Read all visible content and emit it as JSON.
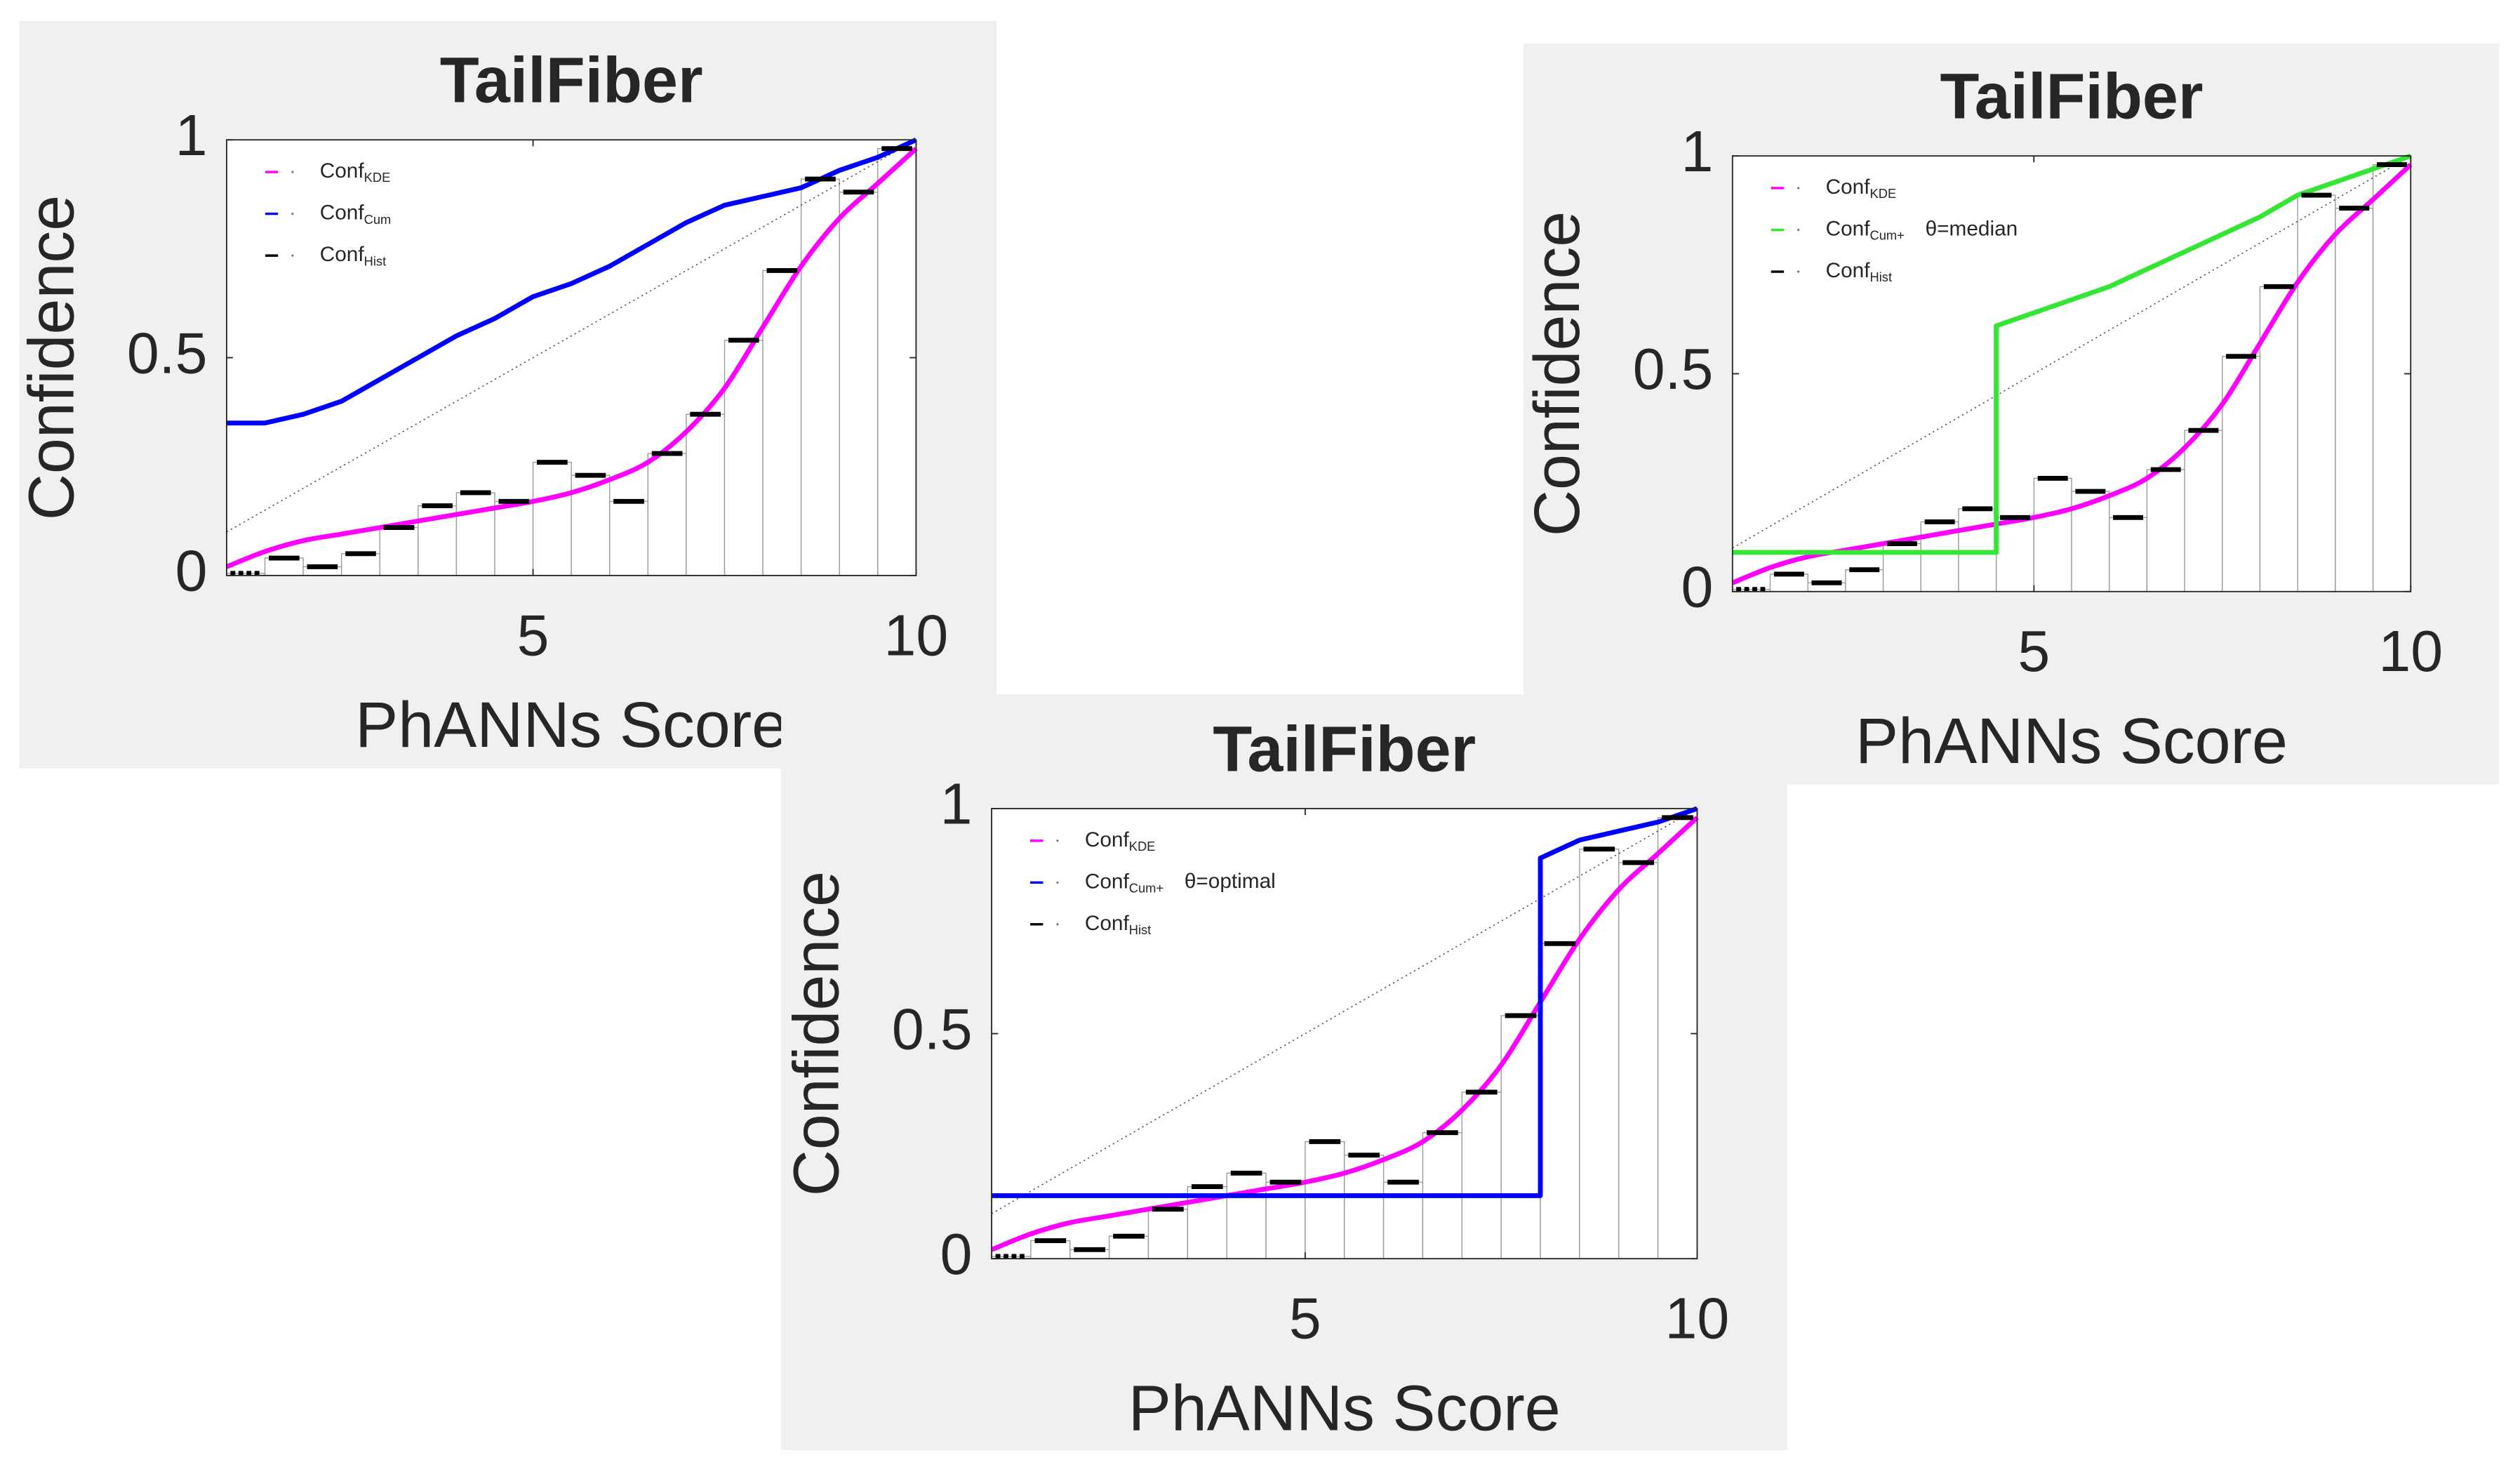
{
  "chart_data": [
    {
      "type": "line",
      "title": "TailFiber",
      "xlabel": "PhANNs Score",
      "ylabel": "Confidence",
      "xlim": [
        1,
        10
      ],
      "ylim": [
        0,
        1
      ],
      "xticks": [
        5,
        10
      ],
      "yticks": [
        0,
        0.5,
        1
      ],
      "diagonal": {
        "x": [
          1,
          10
        ],
        "values": [
          0.1,
          1
        ]
      },
      "histogram": {
        "name": "Conf",
        "subscript": "Hist",
        "color": "#000000",
        "bins": [
          1,
          1.5,
          2,
          2.5,
          3,
          3.5,
          4,
          4.5,
          5,
          5.5,
          6,
          6.5,
          7,
          7.5,
          8,
          8.5,
          9,
          9.5,
          10
        ],
        "values": [
          0.005,
          0.04,
          0.02,
          0.05,
          0.11,
          0.16,
          0.19,
          0.17,
          0.26,
          0.23,
          0.17,
          0.28,
          0.37,
          0.54,
          0.7,
          0.91,
          0.88,
          0.98
        ]
      },
      "series": [
        {
          "name": "Conf",
          "subscript": "KDE",
          "color": "#ff00ff",
          "x": [
            1,
            1.5,
            2,
            2.5,
            3,
            3.5,
            4,
            4.5,
            5,
            5.5,
            6,
            6.5,
            7,
            7.5,
            8,
            8.5,
            9,
            9.5,
            10
          ],
          "values": [
            0.02,
            0.055,
            0.08,
            0.095,
            0.11,
            0.125,
            0.14,
            0.155,
            0.17,
            0.19,
            0.22,
            0.26,
            0.33,
            0.43,
            0.57,
            0.71,
            0.82,
            0.9,
            0.98
          ]
        },
        {
          "name": "Conf",
          "subscript": "Cum",
          "color": "#0000ff",
          "x": [
            1,
            1.5,
            2,
            2.5,
            3,
            3.5,
            4,
            4.5,
            5,
            5.5,
            6,
            6.5,
            7,
            7.5,
            8,
            8.5,
            9,
            9.5,
            10
          ],
          "values": [
            0.35,
            0.35,
            0.37,
            0.4,
            0.45,
            0.5,
            0.55,
            0.59,
            0.64,
            0.67,
            0.71,
            0.76,
            0.81,
            0.85,
            0.87,
            0.89,
            0.93,
            0.96,
            1.0
          ]
        }
      ]
    },
    {
      "type": "line",
      "title": "TailFiber",
      "xlabel": "PhANNs Score",
      "ylabel": "Confidence",
      "xlim": [
        1,
        10
      ],
      "ylim": [
        0,
        1
      ],
      "xticks": [
        5,
        10
      ],
      "yticks": [
        0,
        0.5,
        1
      ],
      "diagonal": {
        "x": [
          1,
          10
        ],
        "values": [
          0.1,
          1
        ]
      },
      "histogram": {
        "name": "Conf",
        "subscript": "Hist",
        "color": "#000000",
        "bins": [
          1,
          1.5,
          2,
          2.5,
          3,
          3.5,
          4,
          4.5,
          5,
          5.5,
          6,
          6.5,
          7,
          7.5,
          8,
          8.5,
          9,
          9.5,
          10
        ],
        "values": [
          0.005,
          0.04,
          0.02,
          0.05,
          0.11,
          0.16,
          0.19,
          0.17,
          0.26,
          0.23,
          0.17,
          0.28,
          0.37,
          0.54,
          0.7,
          0.91,
          0.88,
          0.98
        ]
      },
      "series": [
        {
          "name": "Conf",
          "subscript": "KDE",
          "color": "#ff00ff",
          "x": [
            1,
            1.5,
            2,
            2.5,
            3,
            3.5,
            4,
            4.5,
            5,
            5.5,
            6,
            6.5,
            7,
            7.5,
            8,
            8.5,
            9,
            9.5,
            10
          ],
          "values": [
            0.02,
            0.055,
            0.08,
            0.095,
            0.11,
            0.125,
            0.14,
            0.155,
            0.17,
            0.19,
            0.22,
            0.26,
            0.33,
            0.43,
            0.57,
            0.71,
            0.82,
            0.9,
            0.98
          ]
        },
        {
          "name": "Conf",
          "subscript": "Cum+",
          "label": "θ=median",
          "color": "#33e633",
          "x": [
            1,
            4.5,
            4.5,
            5,
            5.5,
            6,
            6.5,
            7,
            7.5,
            8,
            8.5,
            9,
            9.5,
            10
          ],
          "values": [
            0.09,
            0.09,
            0.61,
            0.64,
            0.67,
            0.7,
            0.74,
            0.78,
            0.82,
            0.86,
            0.91,
            0.94,
            0.97,
            1.0
          ]
        }
      ]
    },
    {
      "type": "line",
      "title": "TailFiber",
      "xlabel": "PhANNs Score",
      "ylabel": "Confidence",
      "xlim": [
        1,
        10
      ],
      "ylim": [
        0,
        1
      ],
      "xticks": [
        5,
        10
      ],
      "yticks": [
        0,
        0.5,
        1
      ],
      "diagonal": {
        "x": [
          1,
          10
        ],
        "values": [
          0.1,
          1
        ]
      },
      "histogram": {
        "name": "Conf",
        "subscript": "Hist",
        "color": "#000000",
        "bins": [
          1,
          1.5,
          2,
          2.5,
          3,
          3.5,
          4,
          4.5,
          5,
          5.5,
          6,
          6.5,
          7,
          7.5,
          8,
          8.5,
          9,
          9.5,
          10
        ],
        "values": [
          0.005,
          0.04,
          0.02,
          0.05,
          0.11,
          0.16,
          0.19,
          0.17,
          0.26,
          0.23,
          0.17,
          0.28,
          0.37,
          0.54,
          0.7,
          0.91,
          0.88,
          0.98
        ]
      },
      "series": [
        {
          "name": "Conf",
          "subscript": "KDE",
          "color": "#ff00ff",
          "x": [
            1,
            1.5,
            2,
            2.5,
            3,
            3.5,
            4,
            4.5,
            5,
            5.5,
            6,
            6.5,
            7,
            7.5,
            8,
            8.5,
            9,
            9.5,
            10
          ],
          "values": [
            0.02,
            0.055,
            0.08,
            0.095,
            0.11,
            0.125,
            0.14,
            0.155,
            0.17,
            0.19,
            0.22,
            0.26,
            0.33,
            0.43,
            0.57,
            0.71,
            0.82,
            0.9,
            0.98
          ]
        },
        {
          "name": "Conf",
          "subscript": "Cum+",
          "label": "θ=optimal",
          "color": "#0000ff",
          "x": [
            1,
            8,
            8,
            8.5,
            9,
            9.5,
            10
          ],
          "values": [
            0.14,
            0.14,
            0.89,
            0.93,
            0.95,
            0.97,
            1.0
          ]
        }
      ]
    }
  ]
}
